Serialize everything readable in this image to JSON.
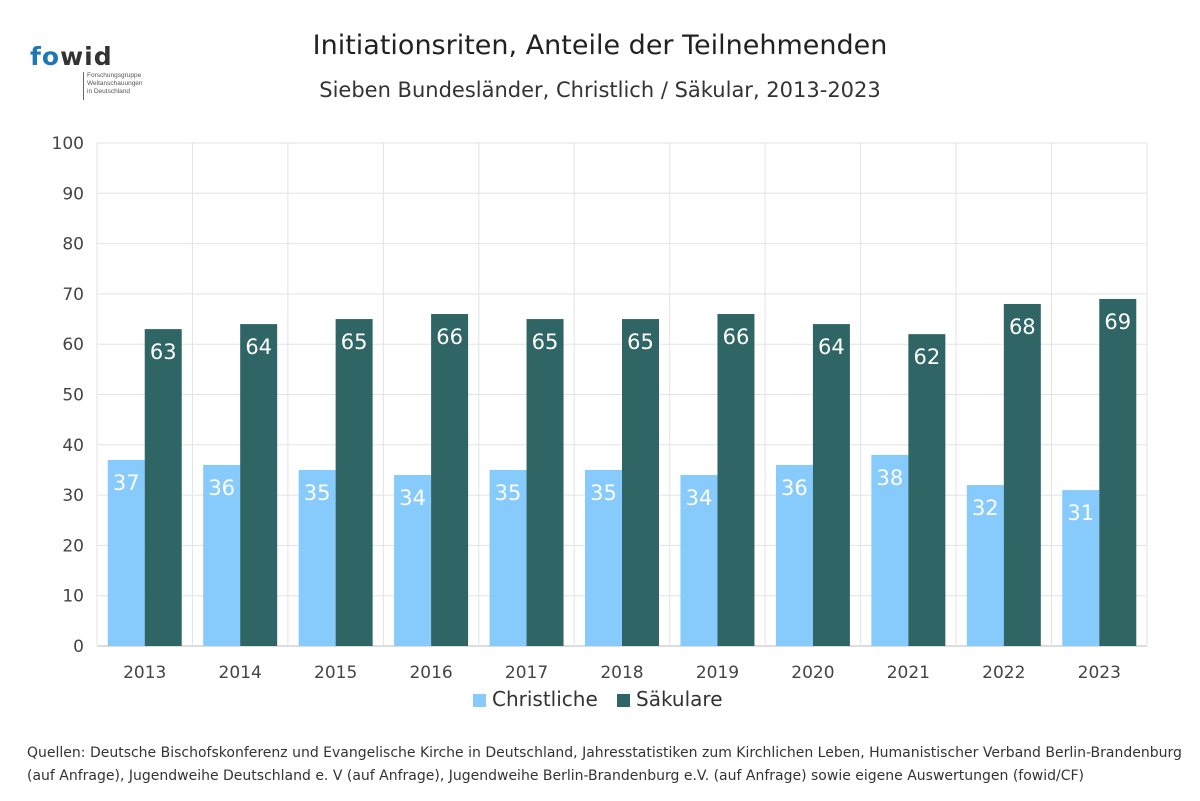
{
  "logo": {
    "word_fo": "fo",
    "word_wid": "wid",
    "sub_lines": [
      "Forschungsgruppe",
      "Weltanschauungen",
      "in Deutschland"
    ]
  },
  "source": "Quellen: Deutsche Bischofskonferenz und Evangelische Kirche in Deutschland, Jahresstatistiken zum Kirchlichen Leben, Humanistischer Verband Berlin-Brandenburg (auf Anfrage), Jugendweihe Deutschland e. V (auf Anfrage), Jugendweihe Berlin-Brandenburg e.V. (auf Anfrage) sowie eigene Auswertungen (fowid/CF)",
  "chart_data": {
    "type": "bar",
    "title": "Initiationsriten, Anteile der Teilnehmenden",
    "subtitle": "Sieben Bundesländer, Christlich / Säkular, 2013-2023",
    "categories": [
      "2013",
      "2014",
      "2015",
      "2016",
      "2017",
      "2018",
      "2019",
      "2020",
      "2021",
      "2022",
      "2023"
    ],
    "series": [
      {
        "name": "Christliche",
        "color": "#87cafc",
        "values": [
          37,
          36,
          35,
          34,
          35,
          35,
          34,
          36,
          38,
          32,
          31
        ]
      },
      {
        "name": "Säkulare",
        "color": "#2f6665",
        "values": [
          63,
          64,
          65,
          66,
          65,
          65,
          66,
          64,
          62,
          68,
          69
        ]
      }
    ],
    "ylim": [
      0,
      100
    ],
    "yticks": [
      0,
      10,
      20,
      30,
      40,
      50,
      60,
      70,
      80,
      90,
      100
    ],
    "grid": true,
    "legend": "bottom-center",
    "data_labels": true
  }
}
